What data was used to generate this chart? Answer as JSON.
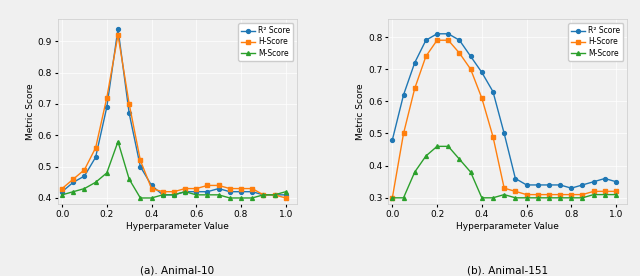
{
  "x": [
    0.0,
    0.05,
    0.1,
    0.15,
    0.2,
    0.25,
    0.3,
    0.35,
    0.4,
    0.45,
    0.5,
    0.55,
    0.6,
    0.65,
    0.7,
    0.75,
    0.8,
    0.85,
    0.9,
    0.95,
    1.0
  ],
  "animal10": {
    "r2": [
      0.42,
      0.45,
      0.47,
      0.53,
      0.69,
      0.94,
      0.67,
      0.5,
      0.44,
      0.41,
      0.41,
      0.42,
      0.42,
      0.42,
      0.43,
      0.42,
      0.42,
      0.42,
      0.41,
      0.41,
      0.41
    ],
    "h": [
      0.43,
      0.46,
      0.49,
      0.56,
      0.72,
      0.92,
      0.7,
      0.52,
      0.43,
      0.42,
      0.42,
      0.43,
      0.43,
      0.44,
      0.44,
      0.43,
      0.43,
      0.43,
      0.41,
      0.41,
      0.4
    ],
    "m": [
      0.41,
      0.42,
      0.43,
      0.45,
      0.48,
      0.58,
      0.46,
      0.4,
      0.4,
      0.41,
      0.41,
      0.42,
      0.41,
      0.41,
      0.41,
      0.4,
      0.4,
      0.4,
      0.41,
      0.41,
      0.42
    ]
  },
  "animal151": {
    "r2": [
      0.48,
      0.62,
      0.72,
      0.79,
      0.81,
      0.81,
      0.79,
      0.74,
      0.69,
      0.63,
      0.5,
      0.36,
      0.34,
      0.34,
      0.34,
      0.34,
      0.33,
      0.34,
      0.35,
      0.36,
      0.35
    ],
    "h": [
      0.3,
      0.5,
      0.64,
      0.74,
      0.79,
      0.79,
      0.75,
      0.7,
      0.61,
      0.49,
      0.33,
      0.32,
      0.31,
      0.31,
      0.31,
      0.31,
      0.31,
      0.31,
      0.32,
      0.32,
      0.32
    ],
    "m": [
      0.3,
      0.3,
      0.38,
      0.43,
      0.46,
      0.46,
      0.42,
      0.38,
      0.3,
      0.3,
      0.31,
      0.3,
      0.3,
      0.3,
      0.3,
      0.3,
      0.3,
      0.3,
      0.31,
      0.31,
      0.31
    ]
  },
  "colors": {
    "r2": "#1f77b4",
    "h": "#ff7f0e",
    "m": "#2ca02c"
  },
  "legend_labels": [
    "R² Score",
    "H-Score",
    "M-Score"
  ],
  "xlabel": "Hyperparameter Value",
  "ylabel": "Metric Score",
  "title_a": "(a). Animal-10",
  "title_b": "(b). Animal-151",
  "ylim_a": [
    0.38,
    0.97
  ],
  "ylim_b": [
    0.28,
    0.855
  ],
  "yticks_a": [
    0.4,
    0.5,
    0.6,
    0.7,
    0.8,
    0.9
  ],
  "yticks_b": [
    0.3,
    0.4,
    0.5,
    0.6,
    0.7,
    0.8
  ],
  "xticks": [
    0.0,
    0.2,
    0.4,
    0.6,
    0.8,
    1.0
  ],
  "bg_color": "#f0f0f0"
}
